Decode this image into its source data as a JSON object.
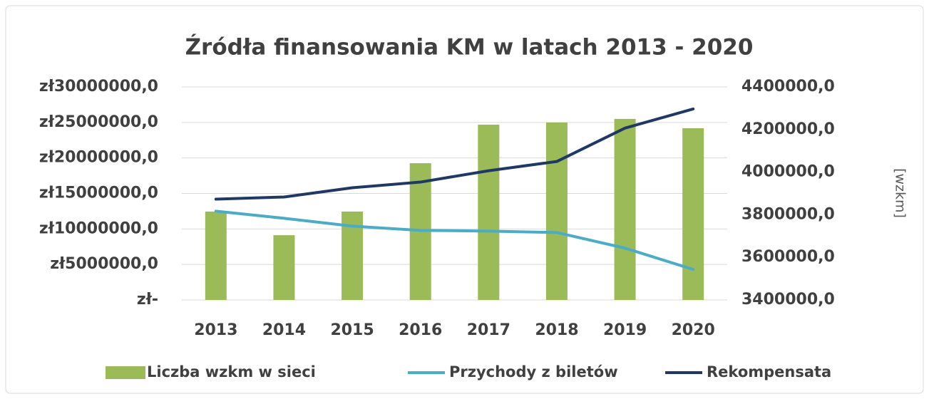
{
  "chart_data": {
    "type": "combo",
    "title": "Źródła finansowania KM w latach 2013 - 2020",
    "categories": [
      "2013",
      "2014",
      "2015",
      "2016",
      "2017",
      "2018",
      "2019",
      "2020"
    ],
    "y2label": "[wzkm]",
    "series": [
      {
        "name": "Liczba wzkm w sieci",
        "type": "bar",
        "axis": "y2",
        "color": "#9bbb59",
        "values": [
          3815000,
          3704000,
          3815000,
          4042000,
          4223000,
          4233000,
          4250000,
          4206000
        ]
      },
      {
        "name": "Przychody z biletów",
        "type": "line",
        "color": "#4bacc6",
        "values": [
          12500000,
          11500000,
          10400000,
          9800000,
          9700000,
          9500000,
          7300000,
          4300000
        ]
      },
      {
        "name": "Rekompensata",
        "type": "line",
        "color": "#1f3864",
        "values": [
          14200000,
          14500000,
          15800000,
          16600000,
          18200000,
          19500000,
          24200000,
          26900000
        ]
      }
    ],
    "ylim": [
      0,
      30000000
    ],
    "yticks": [
      {
        "value": 0,
        "label": "zł-"
      },
      {
        "value": 5000000,
        "label": "zł5000000,0"
      },
      {
        "value": 10000000,
        "label": "zł10000000,0"
      },
      {
        "value": 15000000,
        "label": "zł15000000,0"
      },
      {
        "value": 20000000,
        "label": "zł20000000,0"
      },
      {
        "value": 25000000,
        "label": "zł25000000,0"
      },
      {
        "value": 30000000,
        "label": "zł30000000,0"
      }
    ],
    "y2lim": [
      3400000,
      4400000
    ],
    "y2ticks": [
      {
        "value": 3400000,
        "label": "3400000,0"
      },
      {
        "value": 3600000,
        "label": "3600000,0"
      },
      {
        "value": 3800000,
        "label": "3800000,0"
      },
      {
        "value": 4000000,
        "label": "4000000,0"
      },
      {
        "value": 4200000,
        "label": "4200000,0"
      },
      {
        "value": 4400000,
        "label": "4400000,0"
      }
    ],
    "grid": true
  }
}
